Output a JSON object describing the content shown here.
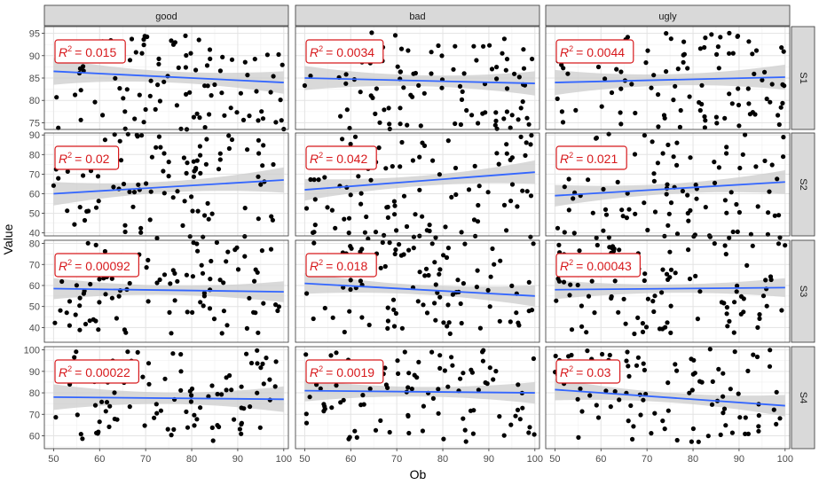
{
  "chart_data": {
    "type": "scatter",
    "xlabel": "Ob",
    "ylabel": "Value",
    "cols": [
      "good",
      "bad",
      "ugly"
    ],
    "rows": [
      "S1",
      "S2",
      "S3",
      "S4"
    ],
    "xlim": [
      48,
      101
    ],
    "x_ticks": [
      50,
      60,
      70,
      80,
      90,
      100
    ],
    "row_scales": [
      {
        "ylim": [
          73.5,
          96.5
        ],
        "ticks": [
          75,
          80,
          85,
          90,
          95
        ]
      },
      {
        "ylim": [
          38.5,
          91
        ],
        "ticks": [
          40,
          50,
          60,
          70,
          80,
          90
        ]
      },
      {
        "ylim": [
          33,
          81.5
        ],
        "ticks": [
          40,
          50,
          60,
          70,
          80
        ]
      },
      {
        "ylim": [
          54,
          101.5
        ],
        "ticks": [
          60,
          70,
          80,
          90,
          100
        ]
      }
    ],
    "colors": {
      "points": "#000000",
      "fit_line": "#3366ff",
      "band": "#cccccc",
      "label": "#d7191c",
      "strip": "#d9d9d9"
    },
    "r2_prefix": "R",
    "r2_exp": "2",
    "panels": [
      {
        "row": "S1",
        "col": "good",
        "r2": "= 0.015",
        "fit": [
          86.5,
          84.0
        ],
        "band": [
          3.0,
          2.5
        ]
      },
      {
        "row": "S1",
        "col": "bad",
        "r2": "= 0.0034",
        "fit": [
          85.0,
          83.8
        ],
        "band": [
          2.7,
          2.7
        ]
      },
      {
        "row": "S1",
        "col": "ugly",
        "r2": "= 0.0044",
        "fit": [
          84.0,
          85.2
        ],
        "band": [
          2.8,
          2.8
        ]
      },
      {
        "row": "S2",
        "col": "good",
        "r2": "= 0.02",
        "fit": [
          60.0,
          67.0
        ],
        "band": [
          6.0,
          6.5
        ]
      },
      {
        "row": "S2",
        "col": "bad",
        "r2": "= 0.042",
        "fit": [
          62.0,
          71.0
        ],
        "band": [
          5.5,
          6.0
        ]
      },
      {
        "row": "S2",
        "col": "ugly",
        "r2": "= 0.021",
        "fit": [
          59.0,
          66.0
        ],
        "band": [
          5.5,
          6.0
        ]
      },
      {
        "row": "S3",
        "col": "good",
        "r2": "= 0.00092",
        "fit": [
          58.5,
          57.0
        ],
        "band": [
          5.0,
          5.0
        ]
      },
      {
        "row": "S3",
        "col": "bad",
        "r2": "= 0.018",
        "fit": [
          61.0,
          55.0
        ],
        "band": [
          5.0,
          5.0
        ]
      },
      {
        "row": "S3",
        "col": "ugly",
        "r2": "= 0.00043",
        "fit": [
          58.0,
          59.0
        ],
        "band": [
          4.5,
          4.5
        ]
      },
      {
        "row": "S4",
        "col": "good",
        "r2": "= 0.00022",
        "fit": [
          78.0,
          77.0
        ],
        "band": [
          6.0,
          6.0
        ]
      },
      {
        "row": "S4",
        "col": "bad",
        "r2": "= 0.0019",
        "fit": [
          81.0,
          80.0
        ],
        "band": [
          5.0,
          5.0
        ]
      },
      {
        "row": "S4",
        "col": "ugly",
        "r2": "= 0.03",
        "fit": [
          81.5,
          74.0
        ],
        "band": [
          5.0,
          5.0
        ]
      }
    ]
  }
}
